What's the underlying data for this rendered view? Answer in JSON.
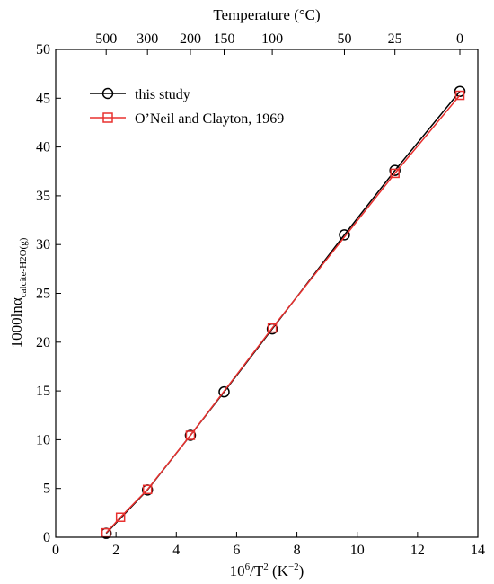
{
  "chart_data": {
    "type": "line",
    "x_axis": {
      "label_main": "10",
      "label_sup1": "6",
      "label_mid": "/T",
      "label_sup2": "2",
      "label_unit": " (K",
      "label_unit_sup": "−2",
      "label_end": ")",
      "xlim": [
        0,
        14
      ],
      "ticks": [
        0,
        2,
        4,
        6,
        8,
        10,
        12,
        14
      ],
      "tick_labels": [
        "0",
        "2",
        "4",
        "6",
        "8",
        "10",
        "12",
        "14"
      ]
    },
    "y_axis": {
      "label_main": "1000lnα",
      "label_sub": "calcite-H2O(g)",
      "ylim": [
        0,
        50
      ],
      "ticks": [
        0,
        5,
        10,
        15,
        20,
        25,
        30,
        35,
        40,
        45,
        50
      ],
      "tick_labels": [
        "0",
        "5",
        "10",
        "15",
        "20",
        "25",
        "30",
        "35",
        "40",
        "45",
        "50"
      ]
    },
    "top_axis": {
      "label": "Temperature (°C)",
      "ticks": [
        {
          "label": "500",
          "x": 1.674
        },
        {
          "label": "300",
          "x": 3.044
        },
        {
          "label": "200",
          "x": 4.467
        },
        {
          "label": "150",
          "x": 5.585
        },
        {
          "label": "100",
          "x": 7.182
        },
        {
          "label": "50",
          "x": 9.576
        },
        {
          "label": "25",
          "x": 11.25
        },
        {
          "label": "0",
          "x": 13.404
        }
      ]
    },
    "series": [
      {
        "name": "this study",
        "color": "#000000",
        "marker": "circle",
        "x": [
          1.674,
          3.044,
          4.467,
          5.585,
          7.182,
          9.576,
          11.25,
          13.404
        ],
        "y": [
          0.4,
          4.85,
          10.45,
          14.9,
          21.35,
          31.0,
          37.6,
          45.7
        ]
      },
      {
        "name": "O’Neil and Clayton, 1969",
        "color": "#e8312f",
        "marker": "square",
        "x": [
          1.674,
          2.15,
          3.044,
          4.467,
          7.182,
          11.25,
          13.404
        ],
        "y": [
          0.45,
          2.05,
          4.9,
          10.45,
          21.45,
          37.3,
          45.3
        ]
      }
    ],
    "legend_position": "top-left",
    "grid": false
  }
}
